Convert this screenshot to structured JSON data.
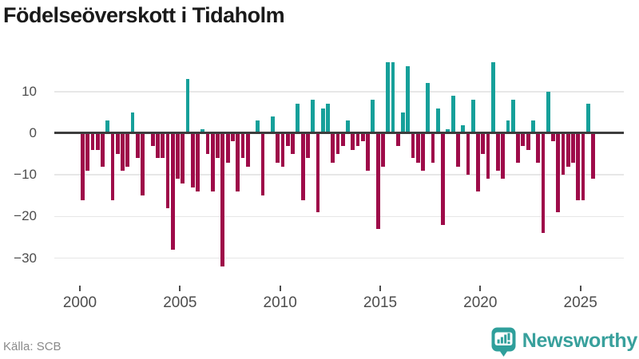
{
  "title": "Födelseöverskott i Tidaholm",
  "source": "Källa: SCB",
  "brand": {
    "name": "Newsworthy"
  },
  "colors": {
    "positive": "#16a09a",
    "negative": "#9e0b49",
    "zero_line": "#3d3d3d",
    "gridline": "#e7e7e7",
    "axis_text": "#4d4d4d",
    "title_text": "#1a1a1a",
    "brand_teal": "#38a09c"
  },
  "chart_data": {
    "type": "bar",
    "title": "Födelseöverskott i Tidaholm",
    "frequency": "quarterly",
    "start_period": "2000-Q1",
    "end_period": "2025-Q3",
    "x_tick_labels": [
      "2000",
      "2005",
      "2010",
      "2015",
      "2020",
      "2025"
    ],
    "y_tick_labels": [
      "10",
      "0",
      "−10",
      "−20",
      "−30"
    ],
    "y_ticks": [
      10,
      0,
      -10,
      -20,
      -30
    ],
    "ylim": [
      -33,
      19
    ],
    "grid": "horizontal",
    "legend": "none",
    "values": [
      -16,
      -9,
      -4,
      -4,
      -8,
      3,
      -16,
      -5,
      -9,
      -8,
      5,
      -6,
      -15,
      0,
      -3,
      -6,
      -6,
      -18,
      -28,
      -11,
      -12,
      13,
      -13,
      -14,
      1,
      -5,
      -14,
      -6,
      -32,
      -7,
      -2,
      -14,
      -6,
      -8,
      0,
      3,
      -15,
      0,
      4,
      -7,
      -8,
      -3,
      -5,
      7,
      -16,
      -6,
      8,
      -19,
      6,
      7,
      -7,
      -5,
      -3,
      3,
      -4,
      -3,
      -2,
      -9,
      8,
      -23,
      -8,
      17,
      17,
      -3,
      5,
      16,
      -6,
      -7,
      -9,
      12,
      -7,
      6,
      -22,
      1,
      9,
      -8,
      2,
      -10,
      8,
      -14,
      -5,
      -11,
      17,
      -9,
      -11,
      3,
      8,
      -7,
      -3,
      -4,
      3,
      -7,
      -24,
      10,
      -2,
      -19,
      -10,
      -8,
      -7,
      -16,
      -16,
      7,
      -11
    ]
  }
}
